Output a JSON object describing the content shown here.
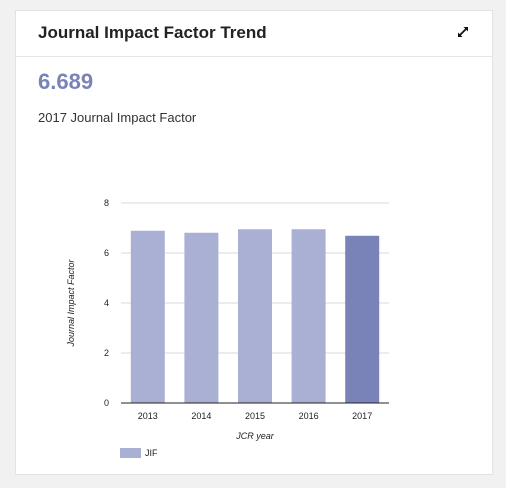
{
  "card": {
    "title": "Journal Impact Factor Trend",
    "expand_icon": "expand-arrows-icon",
    "current_value": "6.689",
    "current_label": "2017 Journal Impact Factor"
  },
  "colors": {
    "bar": "#aab0d3",
    "bar_highlight": "#7983b8",
    "value_text": "#7983b8",
    "grid": "#d8d8d8"
  },
  "chart_data": {
    "type": "bar",
    "categories": [
      "2013",
      "2014",
      "2015",
      "2016",
      "2017"
    ],
    "series": [
      {
        "name": "JIF",
        "values": [
          6.89,
          6.81,
          6.95,
          6.95,
          6.689
        ]
      }
    ],
    "highlight_index": 4,
    "xlabel": "JCR year",
    "ylabel": "Journal Impact Factor",
    "ylim": [
      0,
      8
    ],
    "yticks": [
      0,
      2,
      4,
      6,
      8
    ],
    "grid": true,
    "legend": "bottom-left"
  }
}
